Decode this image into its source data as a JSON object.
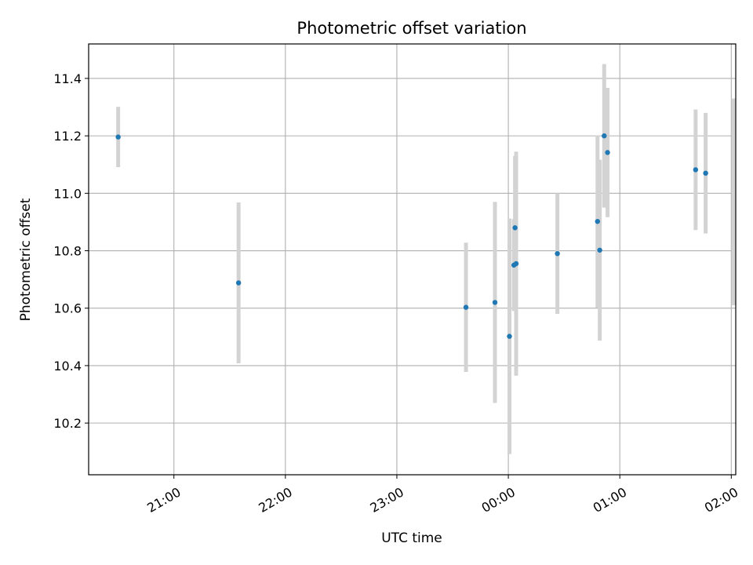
{
  "chart_data": {
    "type": "scatter",
    "title": "Photometric offset variation",
    "xlabel": "UTC time",
    "ylabel": "Photometric offset",
    "x_ticks": [
      "21:00",
      "22:00",
      "23:00",
      "00:00",
      "01:00",
      "02:00"
    ],
    "x_tick_hours": [
      21.0,
      22.0,
      23.0,
      24.0,
      25.0,
      26.0
    ],
    "xlim": [
      20.235,
      26.04
    ],
    "y_ticks": [
      10.2,
      10.4,
      10.6,
      10.8,
      11.0,
      11.2,
      11.4
    ],
    "ylim": [
      10.02,
      11.52
    ],
    "grid": true,
    "colors": {
      "point": "#1f77b4",
      "errorbar": "#d3d3d3",
      "grid": "#b0b0b0"
    },
    "points": [
      {
        "x": 20.5,
        "y": 11.196,
        "yerr": 0.105
      },
      {
        "x": 21.58,
        "y": 10.688,
        "yerr": 0.28
      },
      {
        "x": 23.62,
        "y": 10.603,
        "yerr": 0.225
      },
      {
        "x": 23.88,
        "y": 10.62,
        "yerr": 0.35
      },
      {
        "x": 24.01,
        "y": 10.502,
        "yerr": 0.41
      },
      {
        "x": 24.05,
        "y": 10.75,
        "yerr": 0.16
      },
      {
        "x": 24.06,
        "y": 10.88,
        "yerr": 0.25
      },
      {
        "x": 24.07,
        "y": 10.755,
        "yerr": 0.39
      },
      {
        "x": 24.44,
        "y": 10.79,
        "yerr": 0.21
      },
      {
        "x": 24.8,
        "y": 10.902,
        "yerr": 0.3
      },
      {
        "x": 24.82,
        "y": 10.802,
        "yerr": 0.315
      },
      {
        "x": 24.86,
        "y": 11.2,
        "yerr": 0.25
      },
      {
        "x": 24.89,
        "y": 11.142,
        "yerr": 0.225
      },
      {
        "x": 25.68,
        "y": 11.082,
        "yerr": 0.21
      },
      {
        "x": 25.77,
        "y": 11.07,
        "yerr": 0.21
      },
      {
        "x": 26.02,
        "y": 10.97,
        "yerr": 0.36
      }
    ]
  }
}
